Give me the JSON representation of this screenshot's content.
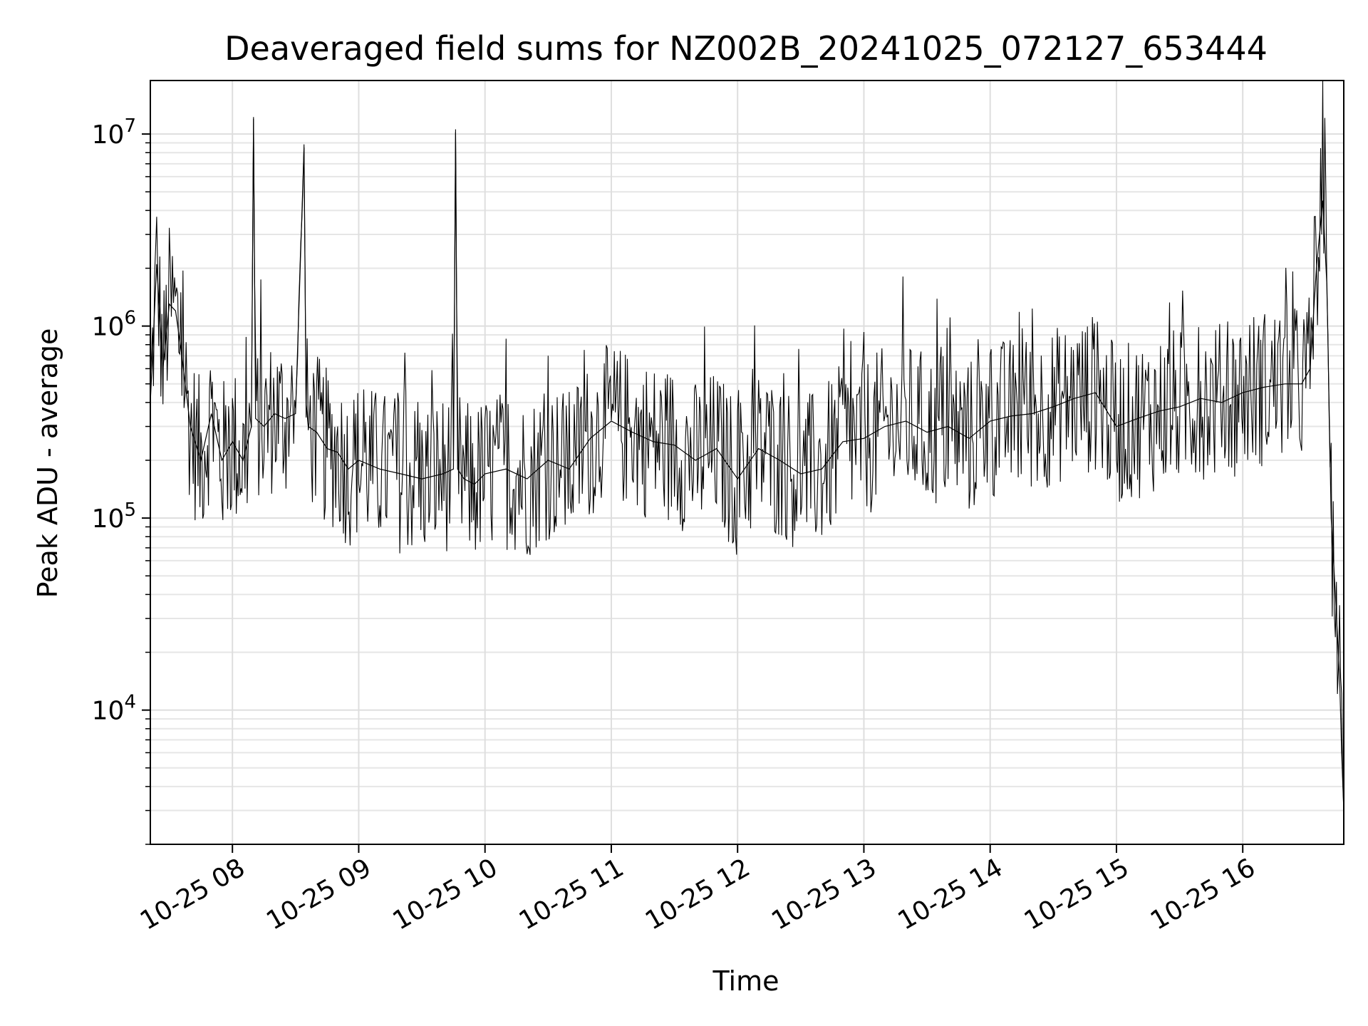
{
  "chart_data": {
    "type": "line",
    "title": "Deaveraged field sums for NZ002B_20241025_072127_653444",
    "xlabel": "Time",
    "ylabel": "Peak ADU - average",
    "yscale": "log",
    "ylim": [
      2000,
      19000000
    ],
    "xlim": [
      "2024-10-25 07:21",
      "2024-10-25 16:48"
    ],
    "grid": true,
    "legend": "none",
    "line_color": "#000000",
    "x_ticks": [
      {
        "t": "2024-10-25 08:00",
        "label": "10-25 08"
      },
      {
        "t": "2024-10-25 09:00",
        "label": "10-25 09"
      },
      {
        "t": "2024-10-25 10:00",
        "label": "10-25 10"
      },
      {
        "t": "2024-10-25 11:00",
        "label": "10-25 11"
      },
      {
        "t": "2024-10-25 12:00",
        "label": "10-25 12"
      },
      {
        "t": "2024-10-25 13:00",
        "label": "10-25 13"
      },
      {
        "t": "2024-10-25 14:00",
        "label": "10-25 14"
      },
      {
        "t": "2024-10-25 15:00",
        "label": "10-25 15"
      },
      {
        "t": "2024-10-25 16:00",
        "label": "10-25 16"
      }
    ],
    "y_ticks": [
      {
        "value": 10000,
        "base": "10",
        "exp": "4"
      },
      {
        "value": 100000,
        "base": "10",
        "exp": "5"
      },
      {
        "value": 1000000,
        "base": "10",
        "exp": "6"
      },
      {
        "value": 10000000,
        "base": "10",
        "exp": "7"
      }
    ],
    "series": [
      {
        "x": [
          "2024-10-25 07:21",
          "2024-10-25 07:24",
          "2024-10-25 07:27",
          "2024-10-25 07:30",
          "2024-10-25 07:33",
          "2024-10-25 07:36",
          "2024-10-25 07:40",
          "2024-10-25 07:45",
          "2024-10-25 07:50",
          "2024-10-25 07:55",
          "2024-10-25 08:00",
          "2024-10-25 08:05",
          "2024-10-25 08:09",
          "2024-10-25 08:10",
          "2024-10-25 08:11",
          "2024-10-25 08:15",
          "2024-10-25 08:20",
          "2024-10-25 08:25",
          "2024-10-25 08:30",
          "2024-10-25 08:34",
          "2024-10-25 08:35",
          "2024-10-25 08:36",
          "2024-10-25 08:40",
          "2024-10-25 08:45",
          "2024-10-25 08:50",
          "2024-10-25 08:55",
          "2024-10-25 09:00",
          "2024-10-25 09:10",
          "2024-10-25 09:20",
          "2024-10-25 09:30",
          "2024-10-25 09:40",
          "2024-10-25 09:45",
          "2024-10-25 09:46",
          "2024-10-25 09:47",
          "2024-10-25 09:50",
          "2024-10-25 09:55",
          "2024-10-25 10:00",
          "2024-10-25 10:10",
          "2024-10-25 10:20",
          "2024-10-25 10:30",
          "2024-10-25 10:40",
          "2024-10-25 10:50",
          "2024-10-25 11:00",
          "2024-10-25 11:10",
          "2024-10-25 11:20",
          "2024-10-25 11:30",
          "2024-10-25 11:40",
          "2024-10-25 11:50",
          "2024-10-25 12:00",
          "2024-10-25 12:10",
          "2024-10-25 12:20",
          "2024-10-25 12:30",
          "2024-10-25 12:40",
          "2024-10-25 12:50",
          "2024-10-25 13:00",
          "2024-10-25 13:10",
          "2024-10-25 13:20",
          "2024-10-25 13:30",
          "2024-10-25 13:40",
          "2024-10-25 13:50",
          "2024-10-25 14:00",
          "2024-10-25 14:10",
          "2024-10-25 14:20",
          "2024-10-25 14:30",
          "2024-10-25 14:40",
          "2024-10-25 14:50",
          "2024-10-25 15:00",
          "2024-10-25 15:10",
          "2024-10-25 15:20",
          "2024-10-25 15:30",
          "2024-10-25 15:40",
          "2024-10-25 15:50",
          "2024-10-25 16:00",
          "2024-10-25 16:10",
          "2024-10-25 16:20",
          "2024-10-25 16:28",
          "2024-10-25 16:32",
          "2024-10-25 16:35",
          "2024-10-25 16:38",
          "2024-10-25 16:40",
          "2024-10-25 16:42",
          "2024-10-25 16:44",
          "2024-10-25 16:46",
          "2024-10-25 16:47",
          "2024-10-25 16:48"
        ],
        "y": [
          400000,
          2100000,
          600000,
          1300000,
          1200000,
          700000,
          300000,
          200000,
          350000,
          200000,
          250000,
          200000,
          300000,
          12000000,
          330000,
          300000,
          350000,
          330000,
          350000,
          8500000,
          400000,
          300000,
          280000,
          230000,
          220000,
          180000,
          200000,
          180000,
          170000,
          160000,
          170000,
          180000,
          10200000,
          180000,
          160000,
          150000,
          170000,
          180000,
          160000,
          200000,
          180000,
          260000,
          320000,
          280000,
          250000,
          240000,
          200000,
          230000,
          160000,
          230000,
          200000,
          170000,
          180000,
          250000,
          260000,
          300000,
          320000,
          280000,
          300000,
          260000,
          320000,
          340000,
          350000,
          380000,
          420000,
          450000,
          300000,
          330000,
          360000,
          380000,
          420000,
          400000,
          450000,
          480000,
          500000,
          500000,
          600000,
          2000000,
          4500000,
          1600000,
          100000,
          40000,
          15000,
          6000,
          3000
        ]
      }
    ]
  }
}
